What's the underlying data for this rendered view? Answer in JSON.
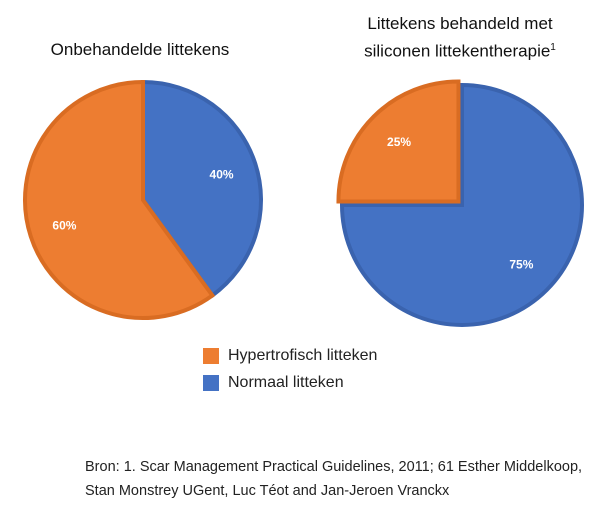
{
  "colors": {
    "hypertrophic": "#ED7D31",
    "hypertrophic_border": "#D96C22",
    "normal": "#4472C4",
    "normal_border": "#3A63AE",
    "label_text": "#FFFFFF"
  },
  "legend": {
    "items": [
      {
        "label": "Hypertrofisch litteken",
        "color": "#ED7D31"
      },
      {
        "label": "Normaal litteken",
        "color": "#4472C4"
      }
    ]
  },
  "source": {
    "prefix": "Bron",
    "text": ": 1. Scar Management Practical Guidelines, 2011; 61 Esther Middelkoop, Stan Monstrey UGent, Luc Téot and Jan-Jeroen Vranckx"
  },
  "chart_data": [
    {
      "type": "pie",
      "title": "Onbehandelde littekens",
      "categories": [
        "Hypertrofisch litteken",
        "Normaal litteken"
      ],
      "values": [
        60,
        40
      ],
      "labels": [
        "60%",
        "40%"
      ],
      "exploded": false
    },
    {
      "type": "pie",
      "title": "Littekens behandeld met siliconen littekentherapie",
      "title_superscript": "1",
      "categories": [
        "Hypertrofisch litteken",
        "Normaal litteken"
      ],
      "values": [
        25,
        75
      ],
      "labels": [
        "25%",
        "75%"
      ],
      "exploded": true
    }
  ]
}
